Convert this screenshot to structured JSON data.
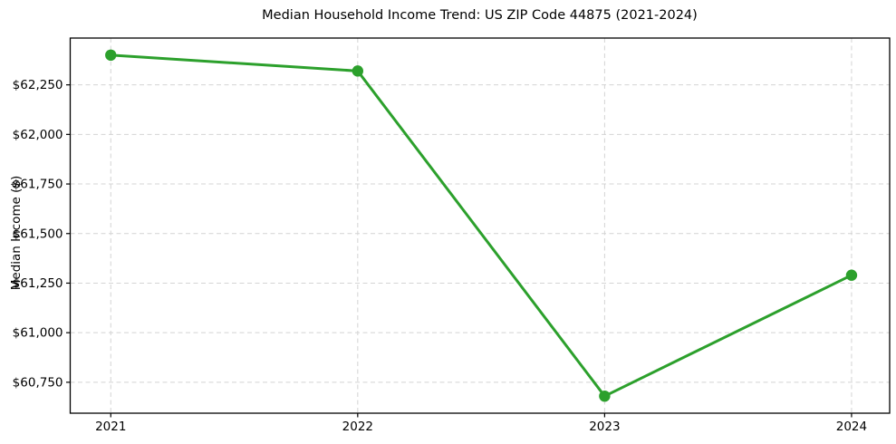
{
  "chart_data": {
    "type": "line",
    "title": "Median Household Income Trend: US ZIP Code 44875 (2021-2024)",
    "xlabel": "",
    "ylabel": "Median Income ($)",
    "x": [
      2021,
      2022,
      2023,
      2024
    ],
    "x_tick_labels": [
      "2021",
      "2022",
      "2023",
      "2024"
    ],
    "series": [
      {
        "name": "Median Household Income",
        "values": [
          62400,
          62320,
          60680,
          61290
        ]
      }
    ],
    "y_ticks": [
      60750,
      61000,
      61250,
      61500,
      61750,
      62000,
      62250
    ],
    "y_tick_labels": [
      "$60,750",
      "$61,000",
      "$61,250",
      "$61,500",
      "$61,750",
      "$62,000",
      "$62,250"
    ],
    "ylim": [
      60594,
      62486
    ],
    "grid": "both-dashed",
    "legend_position": "none",
    "line_color": "#2ca02c",
    "marker": "o",
    "grid_color": "#d4d4d4",
    "axis_color": "#000000",
    "background_color": "#ffffff"
  }
}
